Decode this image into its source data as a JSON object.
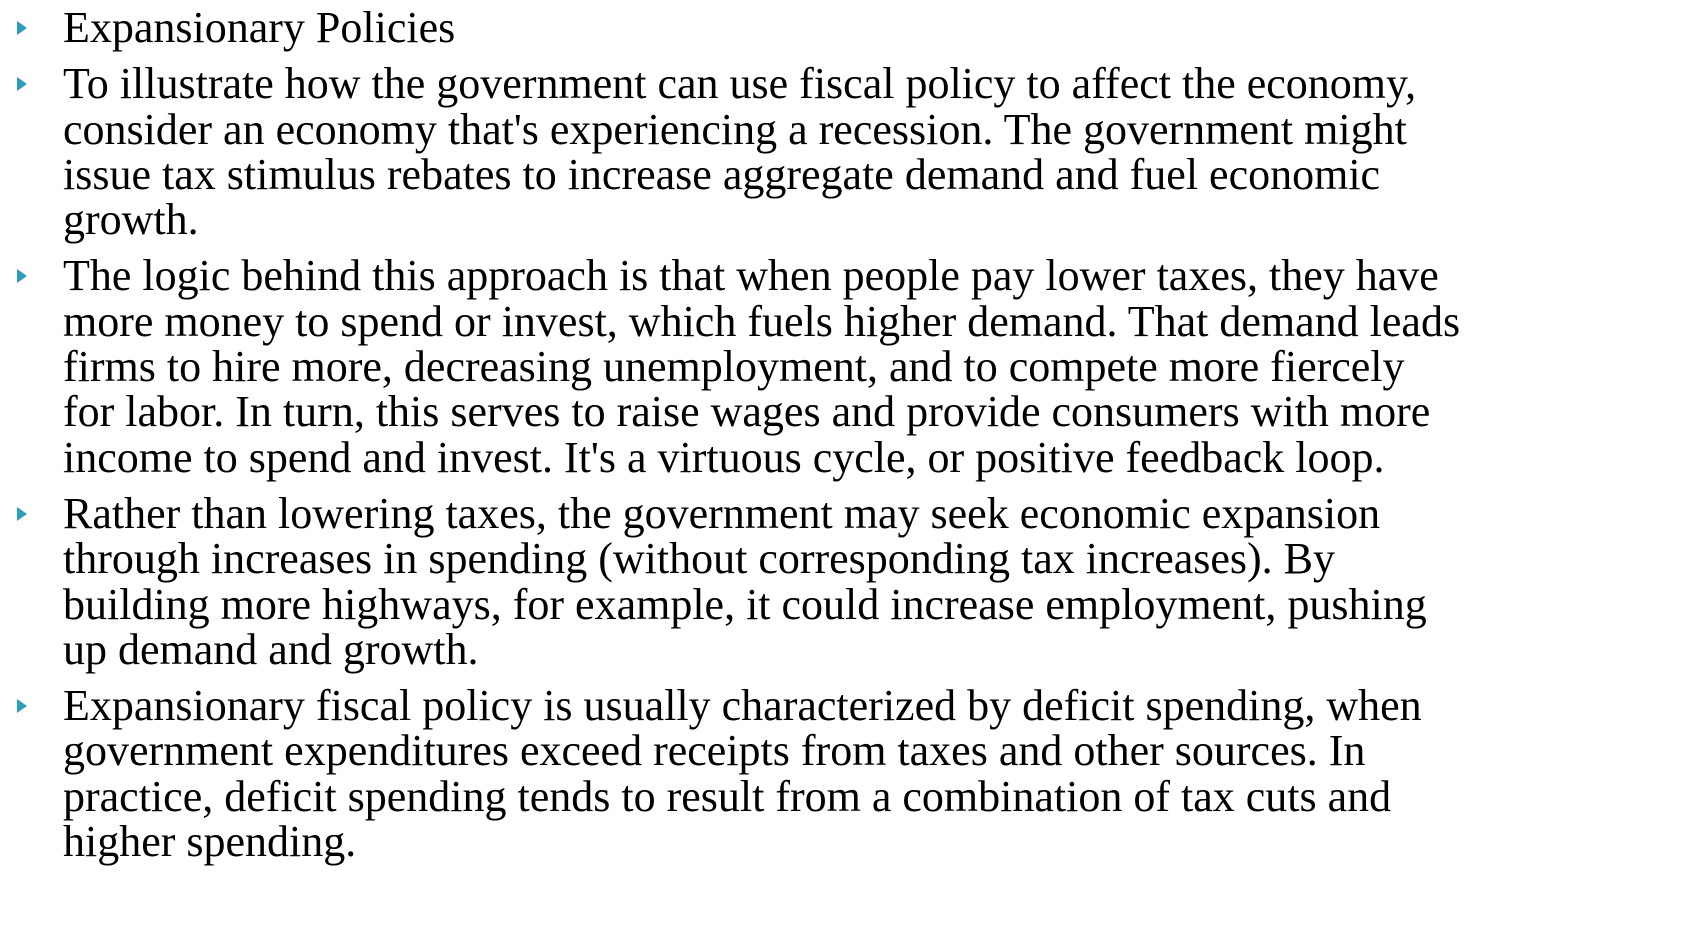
{
  "bullets": [
    {
      "lines": [
        "Expansionary Policies"
      ]
    },
    {
      "lines": [
        "To illustrate how the government can use fiscal policy to affect the economy,",
        "consider an economy that's experiencing a recession. The government might",
        "issue tax stimulus rebates to increase aggregate demand and fuel economic",
        "growth."
      ]
    },
    {
      "lines": [
        "The logic behind this approach is that when people pay lower taxes, they have",
        "more money to spend or invest, which fuels higher demand. That demand leads",
        "firms to hire more, decreasing unemployment, and to compete more fiercely",
        "for labor. In turn, this serves to raise wages and provide consumers with more",
        "income to spend and invest. It's a virtuous cycle, or positive feedback loop."
      ]
    },
    {
      "lines": [
        "Rather than lowering taxes, the government may seek economic expansion",
        "through increases in spending (without corresponding tax increases). By",
        "building more highways, for example, it could increase employment, pushing",
        "up demand and growth."
      ]
    },
    {
      "lines": [
        "Expansionary fiscal policy is usually characterized by deficit spending, when",
        "government expenditures exceed receipts from taxes and other sources. In",
        "practice, deficit spending tends to result from a combination of tax cuts and",
        "higher spending."
      ]
    }
  ]
}
